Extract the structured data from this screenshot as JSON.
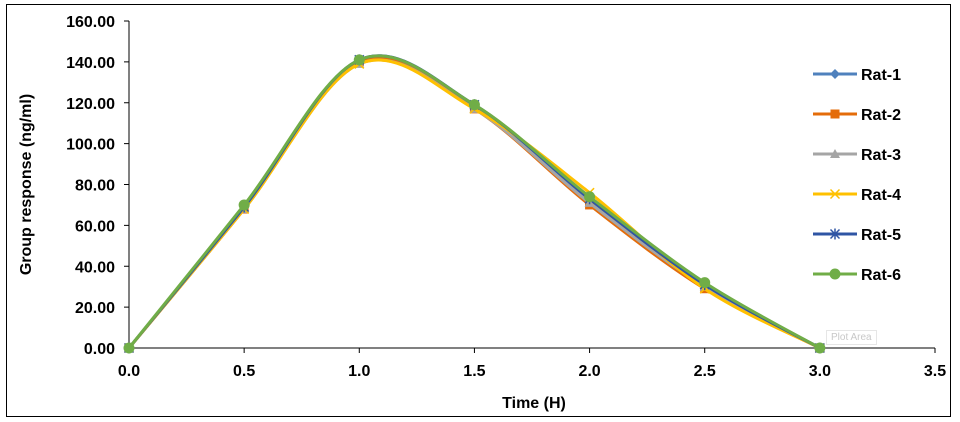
{
  "chart_data": {
    "type": "line",
    "xlabel": "Time (H)",
    "ylabel": "Group response (ng/ml)",
    "xlim": [
      0,
      3.5
    ],
    "ylim": [
      0,
      160
    ],
    "x_ticks": [
      "0.0",
      "0.5",
      "1.0",
      "1.5",
      "2.0",
      "2.5",
      "3.0",
      "3.5"
    ],
    "y_ticks": [
      "0.00",
      "20.00",
      "40.00",
      "60.00",
      "80.00",
      "100.00",
      "120.00",
      "140.00",
      "160.00"
    ],
    "grid": false,
    "legend_position": "right",
    "smooth": true,
    "x": [
      0,
      0.5,
      1.0,
      1.5,
      2.0,
      2.5,
      3.0
    ],
    "series": [
      {
        "name": "Rat-1",
        "color": "#4f81bd",
        "marker": "diamond",
        "values": [
          0,
          69,
          141,
          118,
          72,
          31,
          0
        ]
      },
      {
        "name": "Rat-2",
        "color": "#e46c0a",
        "marker": "square",
        "values": [
          0,
          68,
          140,
          117,
          70,
          29,
          0
        ]
      },
      {
        "name": "Rat-3",
        "color": "#a5a5a5",
        "marker": "triangle",
        "values": [
          0,
          68,
          139,
          117,
          71,
          30,
          0
        ]
      },
      {
        "name": "Rat-4",
        "color": "#ffc000",
        "marker": "x",
        "values": [
          0,
          68,
          139,
          117,
          76,
          29,
          0
        ]
      },
      {
        "name": "Rat-5",
        "color": "#2f55a4",
        "marker": "star",
        "values": [
          0,
          69,
          141,
          119,
          73,
          31,
          0
        ]
      },
      {
        "name": "Rat-6",
        "color": "#70ad47",
        "marker": "circle",
        "values": [
          0,
          70,
          141,
          119,
          74,
          32,
          0
        ]
      }
    ]
  },
  "tooltip": "Plot Area"
}
